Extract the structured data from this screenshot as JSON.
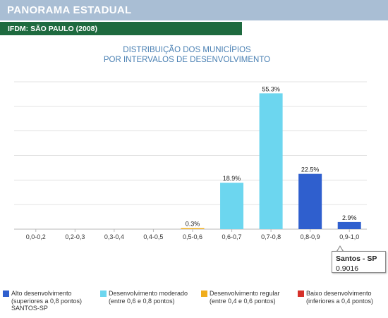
{
  "header": {
    "title": "PANORAMA ESTADUAL",
    "subtitle": "IFDM: SÃO PAULO (2008)"
  },
  "colors": {
    "header_bg": "#a9bed4",
    "subheader_bg": "#1e6a3f",
    "title_color": "#4a80b3",
    "alto": "#2f5fce",
    "moderado": "#6cd6ef",
    "regular": "#f0ad1c",
    "baixo": "#d6312a"
  },
  "chart_data": {
    "type": "bar",
    "title_lines": [
      "DISTRIBUIÇÃO DOS MUNICÍPIOS",
      "POR INTERVALOS DE DESENVOLVIMENTO"
    ],
    "categories": [
      "0,0-0,2",
      "0,2-0,3",
      "0,3-0,4",
      "0,4-0,5",
      "0,5-0,6",
      "0,6-0,7",
      "0,7-0,8",
      "0,8-0,9",
      "0,9-1,0"
    ],
    "values": [
      0,
      0,
      0,
      0,
      0.3,
      18.9,
      55.3,
      22.5,
      2.9
    ],
    "value_labels": [
      "",
      "",
      "",
      "",
      "0.3%",
      "18.9%",
      "55.3%",
      "22.5%",
      "2.9%"
    ],
    "bar_colors": [
      "alto",
      "alto",
      "alto",
      "alto",
      "regular",
      "moderado",
      "moderado",
      "alto",
      "alto"
    ],
    "ylim": [
      0,
      60
    ],
    "grid": true,
    "legend": [
      {
        "name": "Alto desenvolvimento",
        "detail": "(superiores a 0,8 pontos)",
        "color": "alto",
        "extra": "SANTOS-SP"
      },
      {
        "name": "Desenvolvimento moderado",
        "detail": "(entre 0,6 e 0,8 pontos)",
        "color": "moderado",
        "extra": ""
      },
      {
        "name": "Desenvolvimento regular",
        "detail": "(entre 0,4 e 0,6 pontos)",
        "color": "regular",
        "extra": ""
      },
      {
        "name": "Baixo desenvolvimento",
        "detail": "(inferiores a 0,4 pontos)",
        "color": "baixo",
        "extra": ""
      }
    ],
    "tooltip": {
      "name": "Santos - SP",
      "value": "0.9016"
    }
  }
}
